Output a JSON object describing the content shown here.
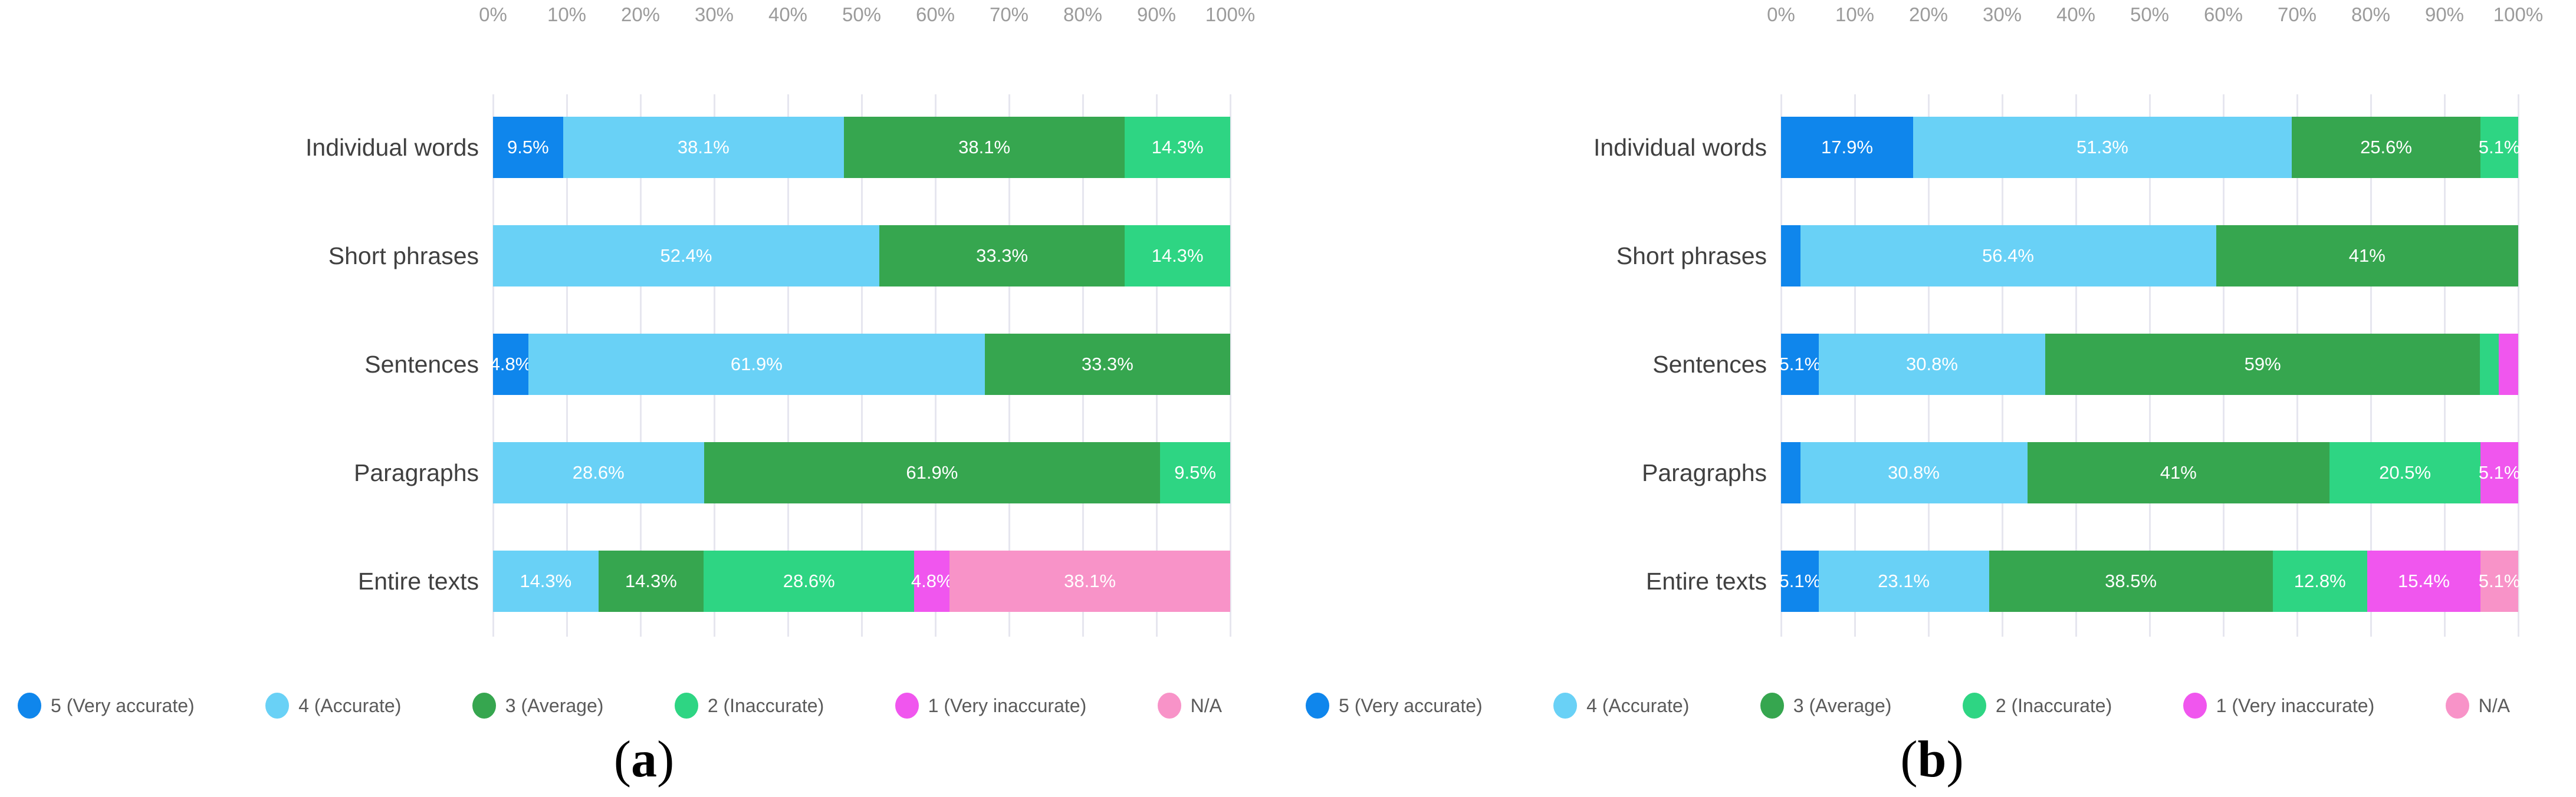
{
  "colors": {
    "background": "#ffffff",
    "grid_line": "#e6e6ef",
    "axis_tick_text": "#9b9b9b",
    "category_text": "#404040",
    "bar_label_text": "#ffffff",
    "legend_text": "#5a5a5a",
    "caption_text": "#000000"
  },
  "legend": [
    {
      "label": "5 (Very accurate)",
      "color": "#0f86ec"
    },
    {
      "label": "4 (Accurate)",
      "color": "#69d1f6"
    },
    {
      "label": "3 (Average)",
      "color": "#36a64f"
    },
    {
      "label": "2 (Inaccurate)",
      "color": "#2ed583"
    },
    {
      "label": "1 (Very inaccurate)",
      "color": "#f056ee"
    },
    {
      "label": "N/A",
      "color": "#f893c8"
    }
  ],
  "chart_data": [
    {
      "id": "a",
      "type": "bar",
      "stacked": true,
      "orientation": "horizontal",
      "caption": "(a)",
      "caption_parts": {
        "open": "(",
        "letter": "a",
        "close": ")"
      },
      "grid": true,
      "legend_position": "bottom",
      "x_axis": {
        "position": "top",
        "min": 0,
        "max": 100,
        "ticks": [
          "0%",
          "10%",
          "20%",
          "30%",
          "40%",
          "50%",
          "60%",
          "70%",
          "80%",
          "90%",
          "100%"
        ]
      },
      "categories": [
        "Individual words",
        "Short phrases",
        "Sentences",
        "Paragraphs",
        "Entire texts"
      ],
      "series": [
        {
          "name": "5 (Very accurate)",
          "values": [
            9.5,
            0,
            4.8,
            0,
            0
          ]
        },
        {
          "name": "4 (Accurate)",
          "values": [
            38.1,
            52.4,
            61.9,
            28.6,
            14.3
          ]
        },
        {
          "name": "3 (Average)",
          "values": [
            38.1,
            33.3,
            33.3,
            61.9,
            14.3
          ]
        },
        {
          "name": "2 (Inaccurate)",
          "values": [
            14.3,
            14.3,
            0,
            9.5,
            28.6
          ]
        },
        {
          "name": "1 (Very inaccurate)",
          "values": [
            0,
            0,
            0,
            0,
            4.8
          ]
        },
        {
          "name": "N/A",
          "values": [
            0,
            0,
            0,
            0,
            38.1
          ]
        }
      ],
      "label_min_value": 4
    },
    {
      "id": "b",
      "type": "bar",
      "stacked": true,
      "orientation": "horizontal",
      "caption": "(b)",
      "caption_parts": {
        "open": "(",
        "letter": "b",
        "close": ")"
      },
      "grid": true,
      "legend_position": "bottom",
      "x_axis": {
        "position": "top",
        "min": 0,
        "max": 100,
        "ticks": [
          "0%",
          "10%",
          "20%",
          "30%",
          "40%",
          "50%",
          "60%",
          "70%",
          "80%",
          "90%",
          "100%"
        ]
      },
      "categories": [
        "Individual words",
        "Short phrases",
        "Sentences",
        "Paragraphs",
        "Entire texts"
      ],
      "series": [
        {
          "name": "5 (Very accurate)",
          "values": [
            17.9,
            2.6,
            5.1,
            2.6,
            5.1
          ]
        },
        {
          "name": "4 (Accurate)",
          "values": [
            51.3,
            56.4,
            30.8,
            30.8,
            23.1
          ]
        },
        {
          "name": "3 (Average)",
          "values": [
            25.6,
            41,
            59,
            41,
            38.5
          ]
        },
        {
          "name": "2 (Inaccurate)",
          "values": [
            5.1,
            0,
            2.6,
            20.5,
            12.8
          ]
        },
        {
          "name": "1 (Very inaccurate)",
          "values": [
            0,
            0,
            2.6,
            5.1,
            15.4
          ]
        },
        {
          "name": "N/A",
          "values": [
            0,
            0,
            0,
            0,
            5.1
          ]
        }
      ],
      "label_min_value": 4
    }
  ]
}
